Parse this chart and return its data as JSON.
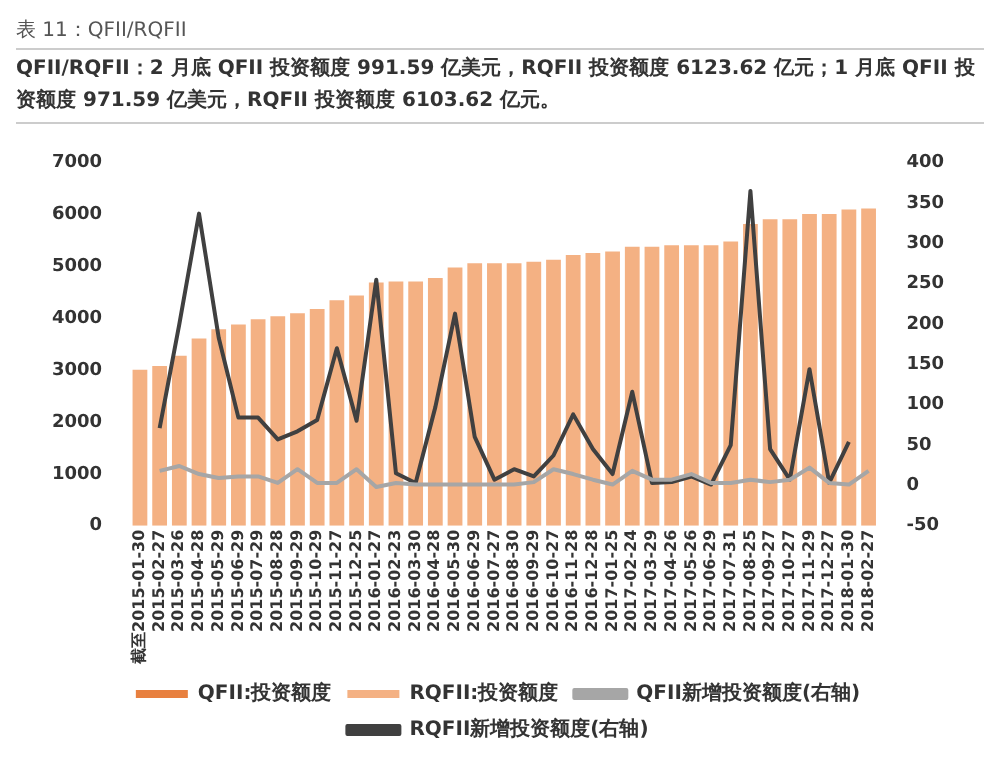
{
  "chart_data": {
    "type": "bar",
    "title": "表 11：QFII/RQFII",
    "subtitle": "QFII/RQFII：2 月底 QFII 投资额度 991.59 亿美元，RQFII 投资额度 6123.62 亿元；1 月底 QFII 投资额度 971.59 亿美元，RQFII 投资额度 6103.62 亿元。",
    "categories": [
      "截至2015-01-30",
      "2015-02-27",
      "2015-03-26",
      "2015-04-28",
      "2015-05-29",
      "2015-06-29",
      "2015-07-29",
      "2015-08-28",
      "2015-09-29",
      "2015-10-29",
      "2015-11-27",
      "2015-12-25",
      "2016-01-27",
      "2016-02-23",
      "2016-03-30",
      "2016-04-28",
      "2016-05-30",
      "2016-06-29",
      "2016-07-27",
      "2016-08-30",
      "2016-09-29",
      "2016-10-27",
      "2016-11-28",
      "2016-12-28",
      "2017-01-25",
      "2017-02-24",
      "2017-03-29",
      "2017-04-26",
      "2017-05-26",
      "2017-06-29",
      "2017-07-31",
      "2017-08-25",
      "2017-09-27",
      "2017-10-27",
      "2017-11-29",
      "2017-12-27",
      "2018-01-30",
      "2018-02-27"
    ],
    "series": [
      {
        "name": "QFII:投资额度",
        "color": "#e8803f",
        "values": [
          null,
          null,
          null,
          null,
          null,
          null,
          null,
          null,
          null,
          null,
          null,
          null,
          null,
          null,
          null,
          null,
          null,
          null,
          null,
          null,
          null,
          null,
          null,
          null,
          null,
          null,
          null,
          null,
          null,
          null,
          null,
          null,
          null,
          null,
          null,
          null,
          null,
          null
        ]
      },
      {
        "name": "RQFII:投资额度",
        "color": "#f4b183",
        "values": [
          3010,
          3080,
          3280,
          3610,
          3790,
          3880,
          3980,
          4040,
          4100,
          4180,
          4350,
          4440,
          4690,
          4710,
          4710,
          4780,
          4980,
          5060,
          5060,
          5060,
          5090,
          5130,
          5220,
          5260,
          5290,
          5380,
          5380,
          5410,
          5410,
          5410,
          5480,
          5820,
          5910,
          5910,
          6010,
          6010,
          6100,
          6120
        ]
      },
      {
        "name": "QFII新增投资额度(右轴)",
        "type": "line",
        "axis": "y2",
        "color": "#a6a6a6",
        "values": [
          null,
          18,
          24,
          14,
          9,
          11,
          11,
          3,
          20,
          3,
          3,
          20,
          -2,
          3,
          1,
          1,
          1,
          1,
          1,
          1,
          4,
          20,
          14,
          7,
          1,
          18,
          7,
          7,
          14,
          3,
          3,
          7,
          4,
          7,
          22,
          3,
          1,
          18
        ]
      },
      {
        "name": "RQFII新增投资额度(右轴)",
        "type": "line",
        "axis": "y2",
        "color": "#404040",
        "values": [
          null,
          71,
          200,
          337,
          183,
          84,
          84,
          57,
          67,
          81,
          170,
          80,
          255,
          15,
          3,
          97,
          213,
          60,
          7,
          20,
          11,
          37,
          88,
          45,
          14,
          116,
          3,
          4,
          11,
          1,
          50,
          365,
          45,
          7,
          144,
          3,
          54,
          null
        ]
      }
    ],
    "ylim": [
      0,
      7000
    ],
    "yticks": [
      0,
      1000,
      2000,
      3000,
      4000,
      5000,
      6000,
      7000
    ],
    "y2lim": [
      -50,
      400
    ],
    "y2ticks": [
      -50,
      0,
      50,
      100,
      150,
      200,
      250,
      300,
      350,
      400
    ],
    "grid": false,
    "legend": "bottom",
    "marker": "none"
  }
}
